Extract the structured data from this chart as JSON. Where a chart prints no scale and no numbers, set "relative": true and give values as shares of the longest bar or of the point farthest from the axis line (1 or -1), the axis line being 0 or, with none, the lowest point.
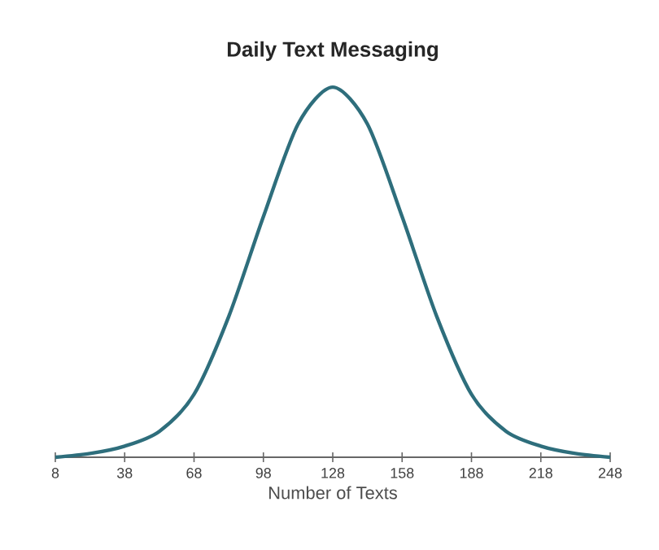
{
  "chart_data": {
    "type": "line",
    "title": "Daily Text Messaging",
    "xlabel": "Number of Texts",
    "relative": true,
    "x": [
      8,
      23,
      38,
      53,
      68,
      83,
      98,
      113,
      128,
      143,
      158,
      173,
      188,
      203,
      218,
      233,
      248
    ],
    "series": [
      {
        "color": "#2e6e7c",
        "values": [
          0.0,
          0.01,
          0.03,
          0.07,
          0.17,
          0.38,
          0.65,
          0.9,
          1.0,
          0.9,
          0.65,
          0.38,
          0.17,
          0.07,
          0.03,
          0.01,
          0.0
        ]
      }
    ],
    "xlim": [
      8,
      248
    ],
    "xticks": [
      8,
      38,
      68,
      98,
      128,
      158,
      188,
      218,
      248
    ],
    "marker": "none",
    "line_style": "solid",
    "grid": false
  }
}
